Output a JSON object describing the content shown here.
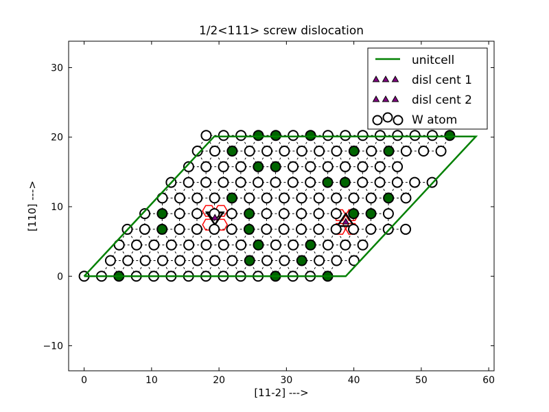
{
  "chart_data": {
    "type": "scatter",
    "title": "1/2<111> screw dislocation",
    "xlabel": "[11-2] --->",
    "ylabel": "[110] --->",
    "xlim": [
      -2.3,
      60.8
    ],
    "ylim": [
      -13.6,
      33.8
    ],
    "xticks": [
      0,
      10,
      20,
      30,
      40,
      50,
      60
    ],
    "yticks": [
      -10,
      0,
      10,
      20,
      30
    ],
    "xtick_labels": [
      "0",
      "10",
      "20",
      "30",
      "40",
      "50",
      "60"
    ],
    "ytick_labels": [
      "−10",
      "0",
      "10",
      "20",
      "30"
    ],
    "grid": false,
    "legend_position": "top-right",
    "legend": [
      "unitcell",
      "disl cent 1",
      "disl cent 2",
      "W atom"
    ],
    "colors": {
      "unitcell": "#008000",
      "atom_edge": "#000000",
      "atom_face": "#ffffff",
      "atom_highlight": "#006400",
      "disl_marker": "#800080",
      "core_ring": "#ff0000"
    },
    "series": [
      {
        "name": "unitcell",
        "kind": "line",
        "points": [
          [
            0,
            0
          ],
          [
            38.8,
            0
          ],
          [
            58.1,
            20.1
          ],
          [
            19.3,
            20.1
          ],
          [
            0,
            0
          ]
        ]
      },
      {
        "name": "disl cent 1",
        "kind": "triangle-markers",
        "points": [
          [
            19.4,
            8.4
          ]
        ]
      },
      {
        "name": "disl cent 2",
        "kind": "triangle-markers",
        "points": [
          [
            38.8,
            7.8
          ]
        ]
      },
      {
        "name": "W atom",
        "kind": "lattice",
        "a": 2.58,
        "row_spacing": 2.25,
        "rows": [
          {
            "x0": 0.0,
            "n": 15,
            "filled": [
              2,
              11,
              14
            ]
          },
          {
            "x0": 3.9,
            "n": 15,
            "filled": [
              8,
              11
            ]
          },
          {
            "x0": 5.2,
            "n": 15,
            "filled": [
              8,
              11
            ]
          },
          {
            "x0": 6.4,
            "n": 17,
            "filled": [
              2,
              7
            ]
          },
          {
            "x0": 9.0,
            "n": 15,
            "filled": [
              1,
              6,
              12,
              13
            ]
          },
          {
            "x0": 11.6,
            "n": 15,
            "filled": [
              4,
              13
            ]
          },
          {
            "x0": 12.9,
            "n": 16,
            "filled": [
              9,
              10
            ]
          },
          {
            "x0": 15.5,
            "n": 13,
            "filled": [
              4,
              5,
              15
            ]
          },
          {
            "x0": 16.8,
            "n": 15,
            "filled": [
              2,
              9,
              11
            ]
          },
          {
            "x0": 18.1,
            "n": 15,
            "filled": [
              3,
              4,
              6,
              14
            ]
          }
        ]
      }
    ]
  }
}
